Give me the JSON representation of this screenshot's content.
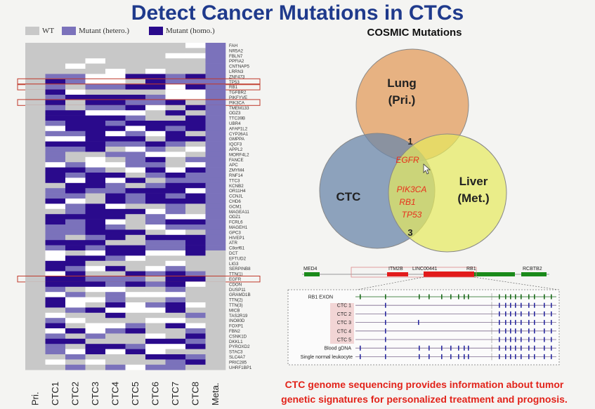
{
  "title": "Detect Cancer Mutations in CTCs",
  "legend": [
    {
      "label": "WT",
      "color": "#c8c8c8"
    },
    {
      "label": "Mutant (hetero.)",
      "color": "#7b72bb"
    },
    {
      "label": "Mutant (homo.)",
      "color": "#2a0a8c"
    }
  ],
  "colors": {
    "wt": "#c8c8c8",
    "blank": "#ffffff",
    "het": "#7b72bb",
    "hom": "#2a0a8c",
    "highlight": "#c0392b"
  },
  "heatmap": {
    "columns": [
      "Pri.",
      "CTC1",
      "CTC2",
      "CTC3",
      "CTC4",
      "CTC5",
      "CTC6",
      "CTC7",
      "CTC8",
      "Meta."
    ],
    "genes": [
      "FAH",
      "NR5A2",
      "FBLN7",
      "PPFIA2",
      "CNTNAP5",
      "LRRN3",
      "ZNF473",
      "TP53",
      "RB1",
      "TGFBR2",
      "PIKFYVE",
      "PIK3CA",
      "TMEM133",
      "ODZ3",
      "TTC39B",
      "UBR4",
      "AFAP1L2",
      "CYP26A1",
      "GMPPA",
      "IQCF3",
      "APPL2",
      "MORF4L2",
      "FANCE",
      "APC",
      "ZMYM4",
      "RNF14",
      "TTC3",
      "KCNB2",
      "OR11H4",
      "CCNJL",
      "CHD6",
      "GCM1",
      "MAGEA11",
      "ODZ1",
      "FCRL6",
      "MAGEH1",
      "GPC3",
      "HIVEP1",
      "ATR",
      "C8orf61",
      "DCT",
      "EFTUD2",
      "LIG3",
      "SERPINB8",
      "TTN(1)",
      "EGFR",
      "CDON",
      "DUSP11",
      "GRAMD1B",
      "TTN(2)",
      "TTN(3)",
      "MICB",
      "TAS2R19",
      "INO80D",
      "FOXP1",
      "FBN2",
      "CSNK1D",
      "DKKL1",
      "PYROXD2",
      "STAC3",
      "SLC4A7",
      "PRIC285",
      "UHRF1BP1"
    ],
    "highlighted": [
      "TP53",
      "RB1",
      "PIK3CA",
      "EGFR"
    ]
  },
  "venn": {
    "title": "COSMIC Mutations",
    "lung_label_1": "Lung",
    "lung_label_2": "(Pri.)",
    "ctc_label": "CTC",
    "liver_label_1": "Liver",
    "liver_label_2": "(Met.)",
    "count_top": "1",
    "count_bottom": "3",
    "gene_egfr": "EGFR",
    "gene_pik3ca": "PIK3CA",
    "gene_rb1": "RB1",
    "gene_tp53": "TP53",
    "colors": {
      "lung": "#e4a66e",
      "ctc": "#6b87a9",
      "liver": "#e6ea5c",
      "gene_text": "#e8301c"
    }
  },
  "track": {
    "genes": [
      "MED4",
      "ITM2B",
      "LINC00441",
      "RB1",
      "RCBTB2"
    ],
    "rows": [
      "RB1 EXON",
      "CTC 1",
      "CTC 2",
      "CTC 3",
      "CTC 4",
      "CTC 5",
      "Blood gDNA",
      "Single normal leukocyte"
    ]
  },
  "footer": {
    "line1": "CTC genome sequencing provides information about tumor",
    "line2": "genetic signatures for personalized treatment and prognosis."
  }
}
